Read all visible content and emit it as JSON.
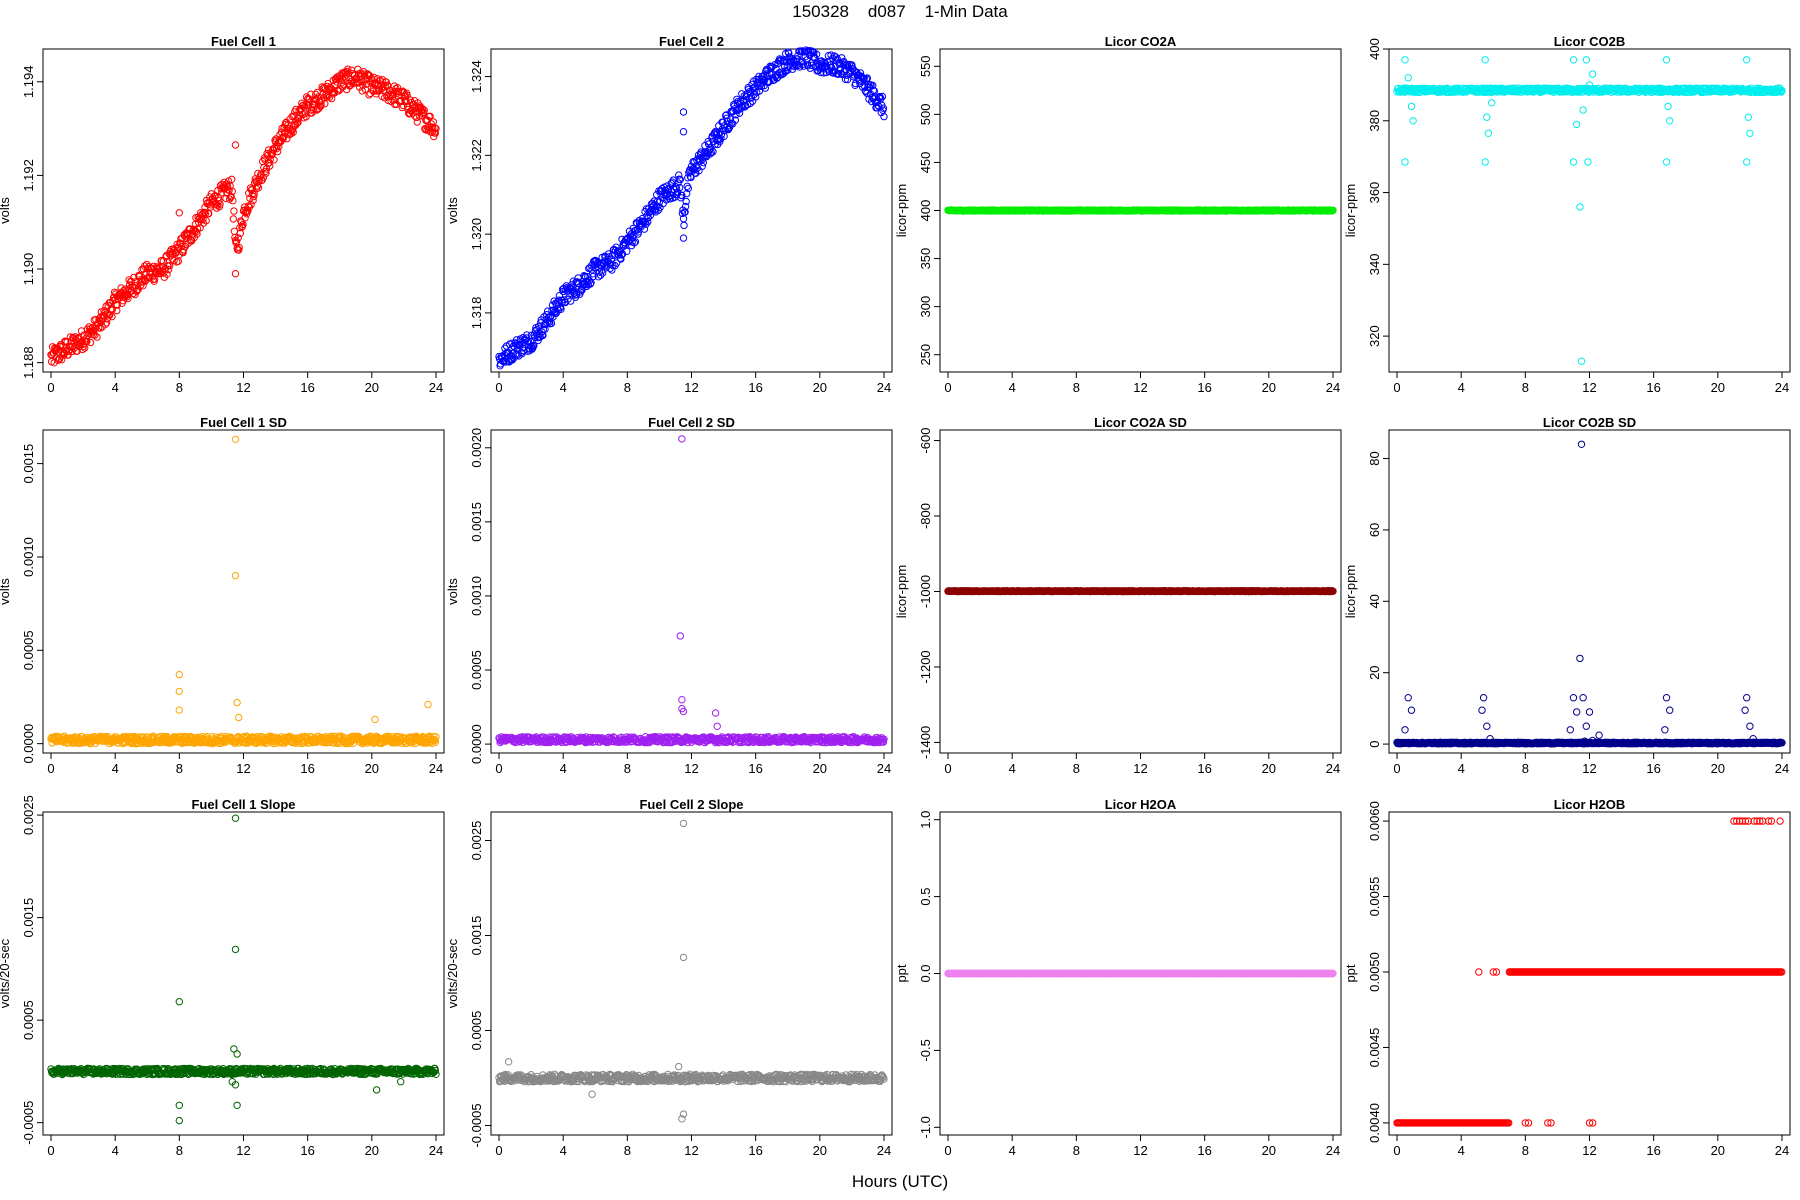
{
  "figure": {
    "title": "150328    d087    1-Min Data",
    "xlabel": "Hours (UTC)"
  },
  "chart_data": [
    {
      "type": "scatter",
      "title": "Fuel Cell 1",
      "ylabel": "volts",
      "color": "#ff0000",
      "xlim": [
        -0.5,
        24.5
      ],
      "ylim": [
        1.1878,
        1.1947
      ],
      "xticks": [
        0,
        4,
        8,
        12,
        16,
        20,
        24
      ],
      "yticks": [
        1.188,
        1.19,
        1.192,
        1.194
      ],
      "ytick_labels": [
        "1.188",
        "1.190",
        "1.192",
        "1.194"
      ],
      "series": [
        {
          "x": [
            0,
            1,
            2,
            3,
            4,
            5,
            6,
            7,
            8,
            9,
            10,
            11,
            11.3,
            11.5,
            11.7,
            12,
            13,
            14,
            15,
            16,
            17,
            18,
            19,
            20,
            21,
            22,
            23,
            24
          ],
          "y": [
            1.1881,
            1.1883,
            1.1885,
            1.1888,
            1.1893,
            1.1896,
            1.1899,
            1.19,
            1.1904,
            1.1909,
            1.1914,
            1.1917,
            1.1917,
            1.1904,
            1.1906,
            1.1912,
            1.192,
            1.1926,
            1.1931,
            1.1935,
            1.1937,
            1.194,
            1.1941,
            1.1939,
            1.1938,
            1.1936,
            1.1933,
            1.193
          ],
          "band": 0.00022,
          "outliers": [
            [
              11.5,
              1.19265
            ],
            [
              11.5,
              1.1899
            ],
            [
              8,
              1.1912
            ]
          ]
        }
      ]
    },
    {
      "type": "scatter",
      "title": "Fuel Cell 2",
      "ylabel": "volts",
      "color": "#0000ff",
      "xlim": [
        -0.5,
        24.5
      ],
      "ylim": [
        1.3165,
        1.3247
      ],
      "xticks": [
        0,
        4,
        8,
        12,
        16,
        20,
        24
      ],
      "yticks": [
        1.318,
        1.32,
        1.322,
        1.324
      ],
      "ytick_labels": [
        "1.318",
        "1.320",
        "1.322",
        "1.324"
      ],
      "series": [
        {
          "x": [
            0,
            1,
            2,
            3,
            4,
            5,
            6,
            7,
            8,
            9,
            10,
            11,
            11.3,
            11.5,
            11.7,
            12,
            13,
            14,
            15,
            16,
            17,
            18,
            19,
            20,
            21,
            22,
            23,
            24
          ],
          "y": [
            1.3168,
            1.3171,
            1.3173,
            1.3178,
            1.3184,
            1.3187,
            1.3191,
            1.3193,
            1.3198,
            1.3203,
            1.3209,
            1.3212,
            1.3213,
            1.3203,
            1.3211,
            1.3216,
            1.3221,
            1.3227,
            1.3233,
            1.3237,
            1.3241,
            1.3244,
            1.3245,
            1.3243,
            1.3243,
            1.3241,
            1.3237,
            1.3232
          ],
          "band": 0.00025,
          "outliers": [
            [
              11.5,
              1.3231
            ],
            [
              11.5,
              1.3199
            ],
            [
              11.5,
              1.3226
            ]
          ]
        }
      ]
    },
    {
      "type": "scatter",
      "title": "Licor CO2A",
      "ylabel": "licor-ppm",
      "color": "#00ee00",
      "xlim": [
        -0.5,
        24.5
      ],
      "ylim": [
        232,
        568
      ],
      "xticks": [
        0,
        4,
        8,
        12,
        16,
        20,
        24
      ],
      "yticks": [
        250,
        300,
        350,
        400,
        450,
        500,
        550
      ],
      "ytick_labels": [
        "250",
        "300",
        "350",
        "400",
        "450",
        "500",
        "550"
      ],
      "series": [
        {
          "x": [
            0,
            24
          ],
          "y": [
            400,
            400
          ],
          "band": 0.5,
          "outliers": []
        }
      ]
    },
    {
      "type": "scatter",
      "title": "Licor CO2B",
      "ylabel": "licor-ppm",
      "color": "#00eeee",
      "xlim": [
        -0.5,
        24.5
      ],
      "ylim": [
        310,
        400
      ],
      "xticks": [
        0,
        4,
        8,
        12,
        16,
        20,
        24
      ],
      "yticks": [
        320,
        340,
        360,
        380,
        400
      ],
      "ytick_labels": [
        "320",
        "340",
        "360",
        "380",
        "400"
      ],
      "series": [
        {
          "x": [
            0,
            24
          ],
          "y": [
            388.5,
            388.5
          ],
          "band": 0.6,
          "outliers": [
            [
              0.5,
              397
            ],
            [
              0.5,
              368.5
            ],
            [
              0.7,
              392
            ],
            [
              0.9,
              384
            ],
            [
              1,
              380
            ],
            [
              5.5,
              397
            ],
            [
              5.5,
              368.5
            ],
            [
              5.6,
              381
            ],
            [
              5.7,
              376.5
            ],
            [
              5.9,
              385
            ],
            [
              11,
              397
            ],
            [
              11,
              368.5
            ],
            [
              11.2,
              379
            ],
            [
              11.4,
              356
            ],
            [
              11.5,
              313
            ],
            [
              11.6,
              383
            ],
            [
              11.8,
              397
            ],
            [
              11.9,
              368.5
            ],
            [
              12,
              390
            ],
            [
              12.2,
              393
            ],
            [
              16.8,
              397
            ],
            [
              16.8,
              368.5
            ],
            [
              16.9,
              384
            ],
            [
              17,
              380
            ],
            [
              21.8,
              397
            ],
            [
              21.8,
              368.5
            ],
            [
              21.9,
              381
            ],
            [
              22,
              376.5
            ]
          ]
        }
      ]
    },
    {
      "type": "scatter",
      "title": "Fuel Cell 1 SD",
      "ylabel": "volts",
      "color": "#ffa500",
      "xlim": [
        -0.5,
        24.5
      ],
      "ylim": [
        -5e-05,
        0.00168
      ],
      "xticks": [
        0,
        4,
        8,
        12,
        16,
        20,
        24
      ],
      "yticks": [
        0,
        0.0005,
        0.001,
        0.0015
      ],
      "ytick_labels": [
        "0.0000",
        "0.0005",
        "0.0010",
        "0.0015"
      ],
      "series": [
        {
          "x": [
            0,
            24
          ],
          "y": [
            2e-05,
            2e-05
          ],
          "band": 2e-05,
          "outliers": [
            [
              11.5,
              0.00163
            ],
            [
              11.5,
              0.0009
            ],
            [
              8,
              0.00037
            ],
            [
              8,
              0.00028
            ],
            [
              8,
              0.00018
            ],
            [
              11.6,
              0.00022
            ],
            [
              11.7,
              0.00014
            ],
            [
              20.2,
              0.00013
            ],
            [
              23.5,
              0.00021
            ]
          ]
        }
      ]
    },
    {
      "type": "scatter",
      "title": "Fuel Cell 2 SD",
      "ylabel": "volts",
      "color": "#a020f0",
      "xlim": [
        -0.5,
        24.5
      ],
      "ylim": [
        -6e-05,
        0.00212
      ],
      "xticks": [
        0,
        4,
        8,
        12,
        16,
        20,
        24
      ],
      "yticks": [
        0,
        0.0005,
        0.001,
        0.0015,
        0.002
      ],
      "ytick_labels": [
        "0.0000",
        "0.0005",
        "0.0010",
        "0.0015",
        "0.0020"
      ],
      "series": [
        {
          "x": [
            0,
            24
          ],
          "y": [
            3e-05,
            3e-05
          ],
          "band": 2e-05,
          "outliers": [
            [
              11.4,
              0.00206
            ],
            [
              11.3,
              0.00073
            ],
            [
              11.4,
              0.0003
            ],
            [
              11.5,
              0.00022
            ],
            [
              13.5,
              0.00021
            ],
            [
              13.6,
              0.00012
            ],
            [
              11.4,
              0.00024
            ]
          ]
        }
      ]
    },
    {
      "type": "scatter",
      "title": "Licor CO2A SD",
      "ylabel": "licor-ppm",
      "color": "#8b0000",
      "xlim": [
        -0.5,
        24.5
      ],
      "ylim": [
        -1428,
        -572
      ],
      "xticks": [
        0,
        4,
        8,
        12,
        16,
        20,
        24
      ],
      "yticks": [
        -1400,
        -1200,
        -1000,
        -800,
        -600
      ],
      "ytick_labels": [
        "-1400",
        "-1200",
        "-1000",
        "-800",
        "-600"
      ],
      "series": [
        {
          "x": [
            0,
            24
          ],
          "y": [
            -999,
            -999
          ],
          "band": 1,
          "outliers": []
        }
      ]
    },
    {
      "type": "scatter",
      "title": "Licor CO2B SD",
      "ylabel": "licor-ppm",
      "color": "#00008b",
      "xlim": [
        -0.5,
        24.5
      ],
      "ylim": [
        -2.5,
        88
      ],
      "xticks": [
        0,
        4,
        8,
        12,
        16,
        20,
        24
      ],
      "yticks": [
        0,
        20,
        40,
        60,
        80
      ],
      "ytick_labels": [
        "0",
        "20",
        "40",
        "60",
        "80"
      ],
      "series": [
        {
          "x": [
            0,
            24
          ],
          "y": [
            0.3,
            0.3
          ],
          "band": 0.2,
          "outliers": [
            [
              0.5,
              4
            ],
            [
              0.7,
              13
            ],
            [
              0.9,
              9.5
            ],
            [
              5.4,
              13
            ],
            [
              5.3,
              9.5
            ],
            [
              5.6,
              5
            ],
            [
              5.8,
              1.5
            ],
            [
              10.8,
              4
            ],
            [
              11,
              13
            ],
            [
              11.2,
              9
            ],
            [
              11.4,
              24
            ],
            [
              11.5,
              84
            ],
            [
              11.6,
              13
            ],
            [
              11.8,
              5
            ],
            [
              12,
              9
            ],
            [
              12.2,
              1
            ],
            [
              12.6,
              2.5
            ],
            [
              16.7,
              4
            ],
            [
              16.8,
              13
            ],
            [
              17,
              9.5
            ],
            [
              21.8,
              13
            ],
            [
              21.7,
              9.5
            ],
            [
              22,
              5
            ],
            [
              22.2,
              1.5
            ],
            [
              11.7,
              0.8
            ],
            [
              12.4,
              0.5
            ]
          ]
        }
      ]
    },
    {
      "type": "scatter",
      "title": "Fuel Cell 1 Slope",
      "ylabel": "volts/20-sec",
      "color": "#006400",
      "xlim": [
        -0.5,
        24.5
      ],
      "ylim": [
        -0.00062,
        0.00253
      ],
      "xticks": [
        0,
        4,
        8,
        12,
        16,
        20,
        24
      ],
      "yticks": [
        -0.0005,
        0.0005,
        0.0015,
        0.0025
      ],
      "ytick_labels": [
        "-0.0005",
        "0.0005",
        "0.0015",
        "0.0025"
      ],
      "series": [
        {
          "x": [
            0,
            24
          ],
          "y": [
            0,
            0
          ],
          "band": 3e-05,
          "outliers": [
            [
              11.5,
              0.00247
            ],
            [
              11.5,
              0.00119
            ],
            [
              8,
              0.00068
            ],
            [
              8,
              -0.00033
            ],
            [
              8,
              -0.00048
            ],
            [
              11.4,
              0.00022
            ],
            [
              11.6,
              0.00017
            ],
            [
              11.5,
              -0.00013
            ],
            [
              11.6,
              -0.00033
            ],
            [
              11.3,
              -0.0001
            ],
            [
              20.3,
              -0.00018
            ],
            [
              21.8,
              -0.0001
            ]
          ]
        }
      ]
    },
    {
      "type": "scatter",
      "title": "Fuel Cell 2 Slope",
      "ylabel": "volts/20-sec",
      "color": "#888888",
      "xlim": [
        -0.5,
        24.5
      ],
      "ylim": [
        -0.0006,
        0.0028
      ],
      "xticks": [
        0,
        4,
        8,
        12,
        16,
        20,
        24
      ],
      "yticks": [
        -0.0005,
        0.0005,
        0.0015,
        0.0025
      ],
      "ytick_labels": [
        "-0.0005",
        "0.0005",
        "0.0015",
        "0.0025"
      ],
      "series": [
        {
          "x": [
            0,
            24
          ],
          "y": [
            0,
            0
          ],
          "band": 4e-05,
          "outliers": [
            [
              11.5,
              0.00268
            ],
            [
              11.5,
              0.00127
            ],
            [
              11.5,
              -0.00038
            ],
            [
              11.4,
              -0.00043
            ],
            [
              5.8,
              -0.00017
            ],
            [
              0.6,
              0.00017
            ],
            [
              11.2,
              0.00012
            ]
          ]
        }
      ]
    },
    {
      "type": "scatter",
      "title": "Licor H2OA",
      "ylabel": "ppt",
      "color": "#ee82ee",
      "xlim": [
        -0.5,
        24.5
      ],
      "ylim": [
        -1.05,
        1.05
      ],
      "xticks": [
        0,
        4,
        8,
        12,
        16,
        20,
        24
      ],
      "yticks": [
        -1,
        -0.5,
        0,
        0.5,
        1
      ],
      "ytick_labels": [
        "-1.0",
        "-0.5",
        "0.0",
        "0.5",
        "1.0"
      ],
      "series": [
        {
          "x": [
            0,
            24
          ],
          "y": [
            0,
            0
          ],
          "band": 0,
          "outliers": []
        }
      ]
    },
    {
      "type": "scatter",
      "title": "Licor H2OB",
      "ylabel": "ppt",
      "color": "#ff0000",
      "xlim": [
        -0.5,
        24.5
      ],
      "ylim": [
        0.00392,
        0.00606
      ],
      "xticks": [
        0,
        4,
        8,
        12,
        16,
        20,
        24
      ],
      "yticks": [
        0.004,
        0.0045,
        0.005,
        0.0055,
        0.006
      ],
      "ytick_labels": [
        "0.0040",
        "0.0045",
        "0.0050",
        "0.0055",
        "0.0060"
      ],
      "series": [
        {
          "levels": [
            {
              "from": 0,
              "to": 7,
              "y": 0.004
            },
            {
              "from": 7,
              "to": 24,
              "y": 0.005
            },
            {
              "from": 21,
              "to": 24,
              "y": 0.006,
              "sparse": true
            }
          ],
          "outliers": [
            [
              5.1,
              0.005
            ],
            [
              6,
              0.005
            ],
            [
              6.2,
              0.005
            ],
            [
              8.2,
              0.004
            ],
            [
              9.4,
              0.004
            ],
            [
              12,
              0.004
            ],
            [
              9.6,
              0.004
            ],
            [
              12.2,
              0.004
            ],
            [
              8,
              0.004
            ]
          ]
        }
      ]
    }
  ]
}
